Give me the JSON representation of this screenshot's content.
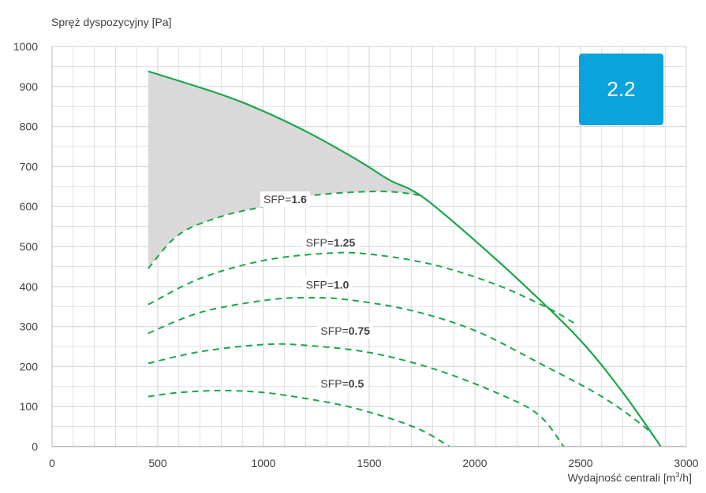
{
  "chart_data": {
    "type": "line",
    "ylabel": "Spręż dyspozycyjny [Pa]",
    "xlabel_main": "Wydajność centrali [m",
    "xlabel_sup": "3",
    "xlabel_end": "/h]",
    "xlim": [
      0,
      3000
    ],
    "ylim": [
      0,
      1000
    ],
    "x_ticks": [
      0,
      500,
      1000,
      1500,
      2000,
      2500,
      3000
    ],
    "y_ticks": [
      0,
      100,
      200,
      300,
      400,
      500,
      600,
      700,
      800,
      900,
      1000
    ],
    "grid": true,
    "badge": "2.2",
    "colors": {
      "curve": "#1aa64a",
      "area": "#d9d9d9",
      "badge": "#0aa3dc",
      "grid": "#d9d9d9"
    },
    "max_curve": {
      "points": [
        [
          455,
          938
        ],
        [
          800,
          880
        ],
        [
          1000,
          838
        ],
        [
          1200,
          788
        ],
        [
          1400,
          730
        ],
        [
          1500,
          698
        ],
        [
          1600,
          665
        ],
        [
          1750,
          625
        ],
        [
          2000,
          515
        ],
        [
          2250,
          395
        ],
        [
          2500,
          265
        ],
        [
          2700,
          135
        ],
        [
          2880,
          0
        ]
      ]
    },
    "shaded_area_lower": [
      [
        455,
        445
      ],
      [
        600,
        530
      ],
      [
        800,
        575
      ],
      [
        1000,
        600
      ],
      [
        1200,
        625
      ],
      [
        1400,
        635
      ],
      [
        1600,
        637
      ],
      [
        1750,
        627
      ]
    ],
    "sfp_curves": [
      {
        "prefix": "SFP=",
        "value": "1.6",
        "label_at": [
          1000,
          608
        ],
        "points": [
          [
            455,
            445
          ],
          [
            600,
            530
          ],
          [
            800,
            575
          ],
          [
            1000,
            600
          ],
          [
            1200,
            625
          ],
          [
            1400,
            635
          ],
          [
            1600,
            637
          ],
          [
            1750,
            627
          ]
        ]
      },
      {
        "prefix": "SFP=",
        "value": "1.25",
        "label_at": [
          1200,
          500
        ],
        "points": [
          [
            455,
            355
          ],
          [
            700,
            420
          ],
          [
            1000,
            465
          ],
          [
            1300,
            483
          ],
          [
            1500,
            481
          ],
          [
            1800,
            455
          ],
          [
            2100,
            405
          ],
          [
            2350,
            345
          ],
          [
            2480,
            305
          ]
        ]
      },
      {
        "prefix": "SFP=",
        "value": "1.0",
        "label_at": [
          1200,
          395
        ],
        "points": [
          [
            455,
            283
          ],
          [
            700,
            335
          ],
          [
            1000,
            365
          ],
          [
            1200,
            372
          ],
          [
            1400,
            367
          ],
          [
            1700,
            340
          ],
          [
            2000,
            290
          ],
          [
            2300,
            210
          ],
          [
            2600,
            125
          ],
          [
            2800,
            50
          ],
          [
            2860,
            15
          ]
        ]
      },
      {
        "prefix": "SFP=",
        "value": "0.75",
        "label_at": [
          1270,
          280
        ],
        "points": [
          [
            455,
            208
          ],
          [
            700,
            237
          ],
          [
            1000,
            255
          ],
          [
            1200,
            253
          ],
          [
            1500,
            235
          ],
          [
            1800,
            195
          ],
          [
            2100,
            135
          ],
          [
            2300,
            80
          ],
          [
            2420,
            0
          ]
        ]
      },
      {
        "prefix": "SFP=",
        "value": "0.5",
        "label_at": [
          1270,
          148
        ],
        "points": [
          [
            455,
            125
          ],
          [
            600,
            135
          ],
          [
            800,
            140
          ],
          [
            1000,
            135
          ],
          [
            1200,
            120
          ],
          [
            1400,
            100
          ],
          [
            1600,
            70
          ],
          [
            1750,
            40
          ],
          [
            1880,
            0
          ]
        ]
      }
    ]
  }
}
